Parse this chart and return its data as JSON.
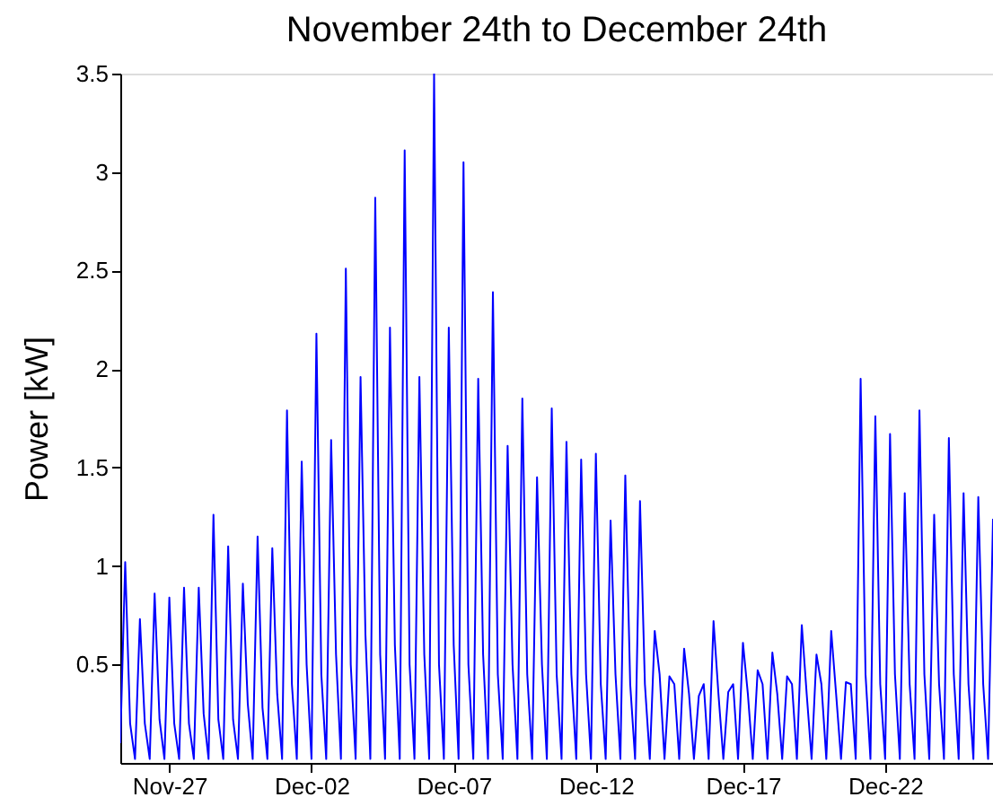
{
  "chart_data": {
    "type": "line",
    "title": "November 24th to December 24th",
    "ylabel": "Power [kW]",
    "ylim": [
      0,
      3.5
    ],
    "categories": [
      null,
      null,
      null,
      null,
      null,
      null,
      null,
      null,
      null,
      null,
      "Nov-27",
      null,
      null,
      null,
      null,
      null,
      null,
      null,
      null,
      null,
      null,
      null,
      null,
      null,
      null,
      null,
      null,
      null,
      null,
      null,
      null,
      null,
      null,
      null,
      null,
      null,
      null,
      null,
      null,
      "Dec-02",
      null,
      null,
      null,
      null,
      null,
      null,
      null,
      null,
      null,
      null,
      null,
      null,
      null,
      null,
      null,
      null,
      null,
      null,
      null,
      null,
      null,
      null,
      null,
      null,
      null,
      null,
      null,
      null,
      "Dec-07",
      null,
      null,
      null,
      null,
      null,
      null,
      null,
      null,
      null,
      null,
      null,
      null,
      null,
      null,
      null,
      null,
      null,
      null,
      null,
      null,
      null,
      null,
      null,
      null,
      null,
      null,
      null,
      null,
      "Dec-12",
      null,
      null,
      null,
      null,
      null,
      null,
      null,
      null,
      null,
      null,
      null,
      null,
      null,
      null,
      null,
      null,
      null,
      null,
      null,
      null,
      null,
      null,
      null,
      null,
      null,
      null,
      null,
      null,
      null,
      "Dec-17",
      null,
      null,
      null,
      null,
      null,
      null,
      null,
      null,
      null,
      null,
      null,
      null,
      null,
      null,
      null,
      null,
      null,
      null,
      null,
      null,
      null,
      null,
      null,
      null,
      null,
      null,
      null,
      null,
      "Dec-22",
      null,
      null,
      null,
      null,
      null,
      null,
      null,
      null,
      null,
      null,
      null,
      null,
      null,
      null,
      null,
      null,
      null,
      null,
      null,
      null,
      null,
      null
    ],
    "yticks": [
      0.5,
      {
        "value": 1,
        "label": "1"
      },
      1.5,
      {
        "value": 2,
        "label": "2"
      },
      2.5,
      {
        "value": 3,
        "label": "3"
      },
      3.5
    ],
    "grid": false,
    "line_style": "solid",
    "series": [
      {
        "color": "#0000ff",
        "values": [
          0.1,
          1.02,
          0.2,
          0.02,
          0.73,
          0.2,
          0.02,
          0.86,
          0.22,
          0.02,
          0.84,
          0.2,
          0.02,
          0.89,
          0.2,
          0.02,
          0.89,
          0.25,
          0.02,
          1.26,
          0.22,
          0.02,
          1.1,
          0.22,
          0.02,
          0.91,
          0.3,
          0.02,
          1.15,
          0.28,
          0.02,
          1.09,
          0.35,
          0.02,
          1.79,
          0.4,
          0.02,
          1.53,
          0.5,
          0.02,
          2.18,
          0.45,
          0.02,
          1.64,
          0.55,
          0.02,
          2.51,
          0.5,
          0.02,
          1.96,
          0.65,
          0.02,
          2.87,
          0.55,
          0.02,
          2.21,
          0.6,
          0.02,
          3.11,
          0.5,
          0.02,
          1.96,
          0.55,
          0.02,
          3.5,
          0.5,
          0.02,
          2.21,
          0.6,
          0.02,
          3.05,
          0.5,
          0.02,
          1.95,
          0.55,
          0.02,
          2.39,
          0.45,
          0.02,
          1.61,
          0.5,
          0.02,
          1.85,
          0.45,
          0.02,
          1.45,
          0.5,
          0.02,
          1.8,
          0.45,
          0.02,
          1.63,
          0.45,
          0.02,
          1.54,
          0.45,
          0.02,
          1.57,
          0.4,
          0.02,
          1.23,
          0.45,
          0.02,
          1.46,
          0.4,
          0.02,
          1.33,
          0.4,
          0.02,
          0.67,
          0.45,
          0.02,
          0.44,
          0.4,
          0.02,
          0.58,
          0.35,
          0.02,
          0.34,
          0.4,
          0.02,
          0.72,
          0.35,
          0.02,
          0.36,
          0.4,
          0.02,
          0.61,
          0.35,
          0.02,
          0.47,
          0.4,
          0.02,
          0.56,
          0.35,
          0.02,
          0.44,
          0.4,
          0.02,
          0.7,
          0.35,
          0.02,
          0.55,
          0.4,
          0.02,
          0.67,
          0.35,
          0.02,
          0.41,
          0.4,
          0.02,
          1.95,
          0.45,
          0.02,
          1.76,
          0.4,
          0.02,
          1.67,
          0.45,
          0.02,
          1.37,
          0.4,
          0.02,
          1.79,
          0.45,
          0.02,
          1.26,
          0.4,
          0.02,
          1.65,
          0.45,
          0.02,
          1.37,
          0.4,
          0.02,
          1.35,
          0.4,
          0.02,
          1.24
        ]
      }
    ]
  }
}
